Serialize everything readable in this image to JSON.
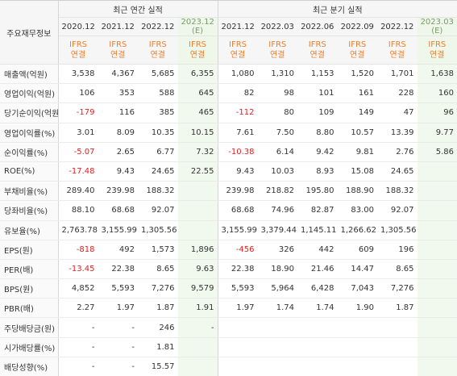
{
  "header": {
    "label": "주요재무정보",
    "annual": "최근 연간 실적",
    "quarterly": "최근 분기 실적"
  },
  "columns": [
    {
      "period": "2020.12",
      "standard": "IFRS",
      "scope": "연결"
    },
    {
      "period": "2021.12",
      "standard": "IFRS",
      "scope": "연결"
    },
    {
      "period": "2022.12",
      "standard": "IFRS",
      "scope": "연결"
    },
    {
      "period": "2023.12",
      "note": "(E)",
      "standard": "IFRS",
      "scope": "연결"
    },
    {
      "period": "2021.12",
      "standard": "IFRS",
      "scope": "연결"
    },
    {
      "period": "2022.03",
      "standard": "IFRS",
      "scope": "연결"
    },
    {
      "period": "2022.06",
      "standard": "IFRS",
      "scope": "연결"
    },
    {
      "period": "2022.09",
      "standard": "IFRS",
      "scope": "연결"
    },
    {
      "period": "2022.12",
      "standard": "IFRS",
      "scope": "연결"
    },
    {
      "period": "2023.03",
      "note": "(E)",
      "standard": "IFRS",
      "scope": "연결"
    }
  ],
  "table": {
    "rows": [
      {
        "label": "매출액(억원)",
        "cells": [
          "3,538",
          "4,367",
          "5,685",
          "6,355",
          "1,080",
          "1,310",
          "1,153",
          "1,520",
          "1,701",
          "1,638"
        ]
      },
      {
        "label": "영업이익(억원)",
        "cells": [
          "106",
          "353",
          "588",
          "645",
          "82",
          "98",
          "101",
          "161",
          "228",
          "160"
        ]
      },
      {
        "label": "당기순이익(억원)",
        "cells": [
          "-179",
          "116",
          "385",
          "465",
          "-112",
          "80",
          "109",
          "149",
          "47",
          "96"
        ]
      },
      {
        "label": "영업이익률(%)",
        "cells": [
          "3.01",
          "8.09",
          "10.35",
          "10.15",
          "7.61",
          "7.50",
          "8.80",
          "10.57",
          "13.39",
          "9.77"
        ]
      },
      {
        "label": "순이익률(%)",
        "cells": [
          "-5.07",
          "2.65",
          "6.77",
          "7.32",
          "-10.38",
          "6.14",
          "9.42",
          "9.81",
          "2.76",
          "5.86"
        ]
      },
      {
        "label": "ROE(%)",
        "cells": [
          "-17.48",
          "9.43",
          "24.65",
          "22.55",
          "9.43",
          "10.03",
          "8.93",
          "15.08",
          "24.65",
          null
        ]
      },
      {
        "label": "부채비율(%)",
        "cells": [
          "289.40",
          "239.98",
          "188.32",
          null,
          "239.98",
          "218.82",
          "195.80",
          "188.90",
          "188.32",
          null
        ]
      },
      {
        "label": "당좌비율(%)",
        "cells": [
          "88.10",
          "68.68",
          "92.07",
          null,
          "68.68",
          "74.96",
          "82.87",
          "83.00",
          "92.07",
          null
        ]
      },
      {
        "label": "유보율(%)",
        "cells": [
          "2,763.78",
          "3,155.99",
          "1,305.56",
          null,
          "3,155.99",
          "3,379.44",
          "1,145.11",
          "1,266.62",
          "1,305.56",
          null
        ]
      },
      {
        "label": "EPS(원)",
        "cells": [
          "-818",
          "492",
          "1,573",
          "1,896",
          "-456",
          "326",
          "442",
          "609",
          "196",
          null
        ]
      },
      {
        "label": "PER(배)",
        "cells": [
          "-13.45",
          "22.38",
          "8.65",
          "9.63",
          "22.38",
          "18.90",
          "21.46",
          "14.47",
          "8.65",
          null
        ]
      },
      {
        "label": "BPS(원)",
        "cells": [
          "4,852",
          "5,593",
          "7,276",
          "9,579",
          "5,593",
          "5,964",
          "6,428",
          "7,043",
          "7,276",
          null
        ]
      },
      {
        "label": "PBR(배)",
        "cells": [
          "2.27",
          "1.97",
          "1.87",
          "1.91",
          "1.97",
          "1.74",
          "1.74",
          "1.90",
          "1.87",
          null
        ]
      },
      {
        "label": "주당배당금(원)",
        "cells": [
          "-",
          "-",
          "246",
          "-",
          null,
          null,
          null,
          null,
          null,
          null
        ]
      },
      {
        "label": "시가배당률(%)",
        "cells": [
          "-",
          "-",
          "1.81",
          null,
          null,
          null,
          null,
          null,
          null,
          null
        ]
      },
      {
        "label": "배당성향(%)",
        "cells": [
          "-",
          "-",
          "15.57",
          null,
          null,
          null,
          null,
          null,
          null,
          null
        ]
      }
    ]
  }
}
